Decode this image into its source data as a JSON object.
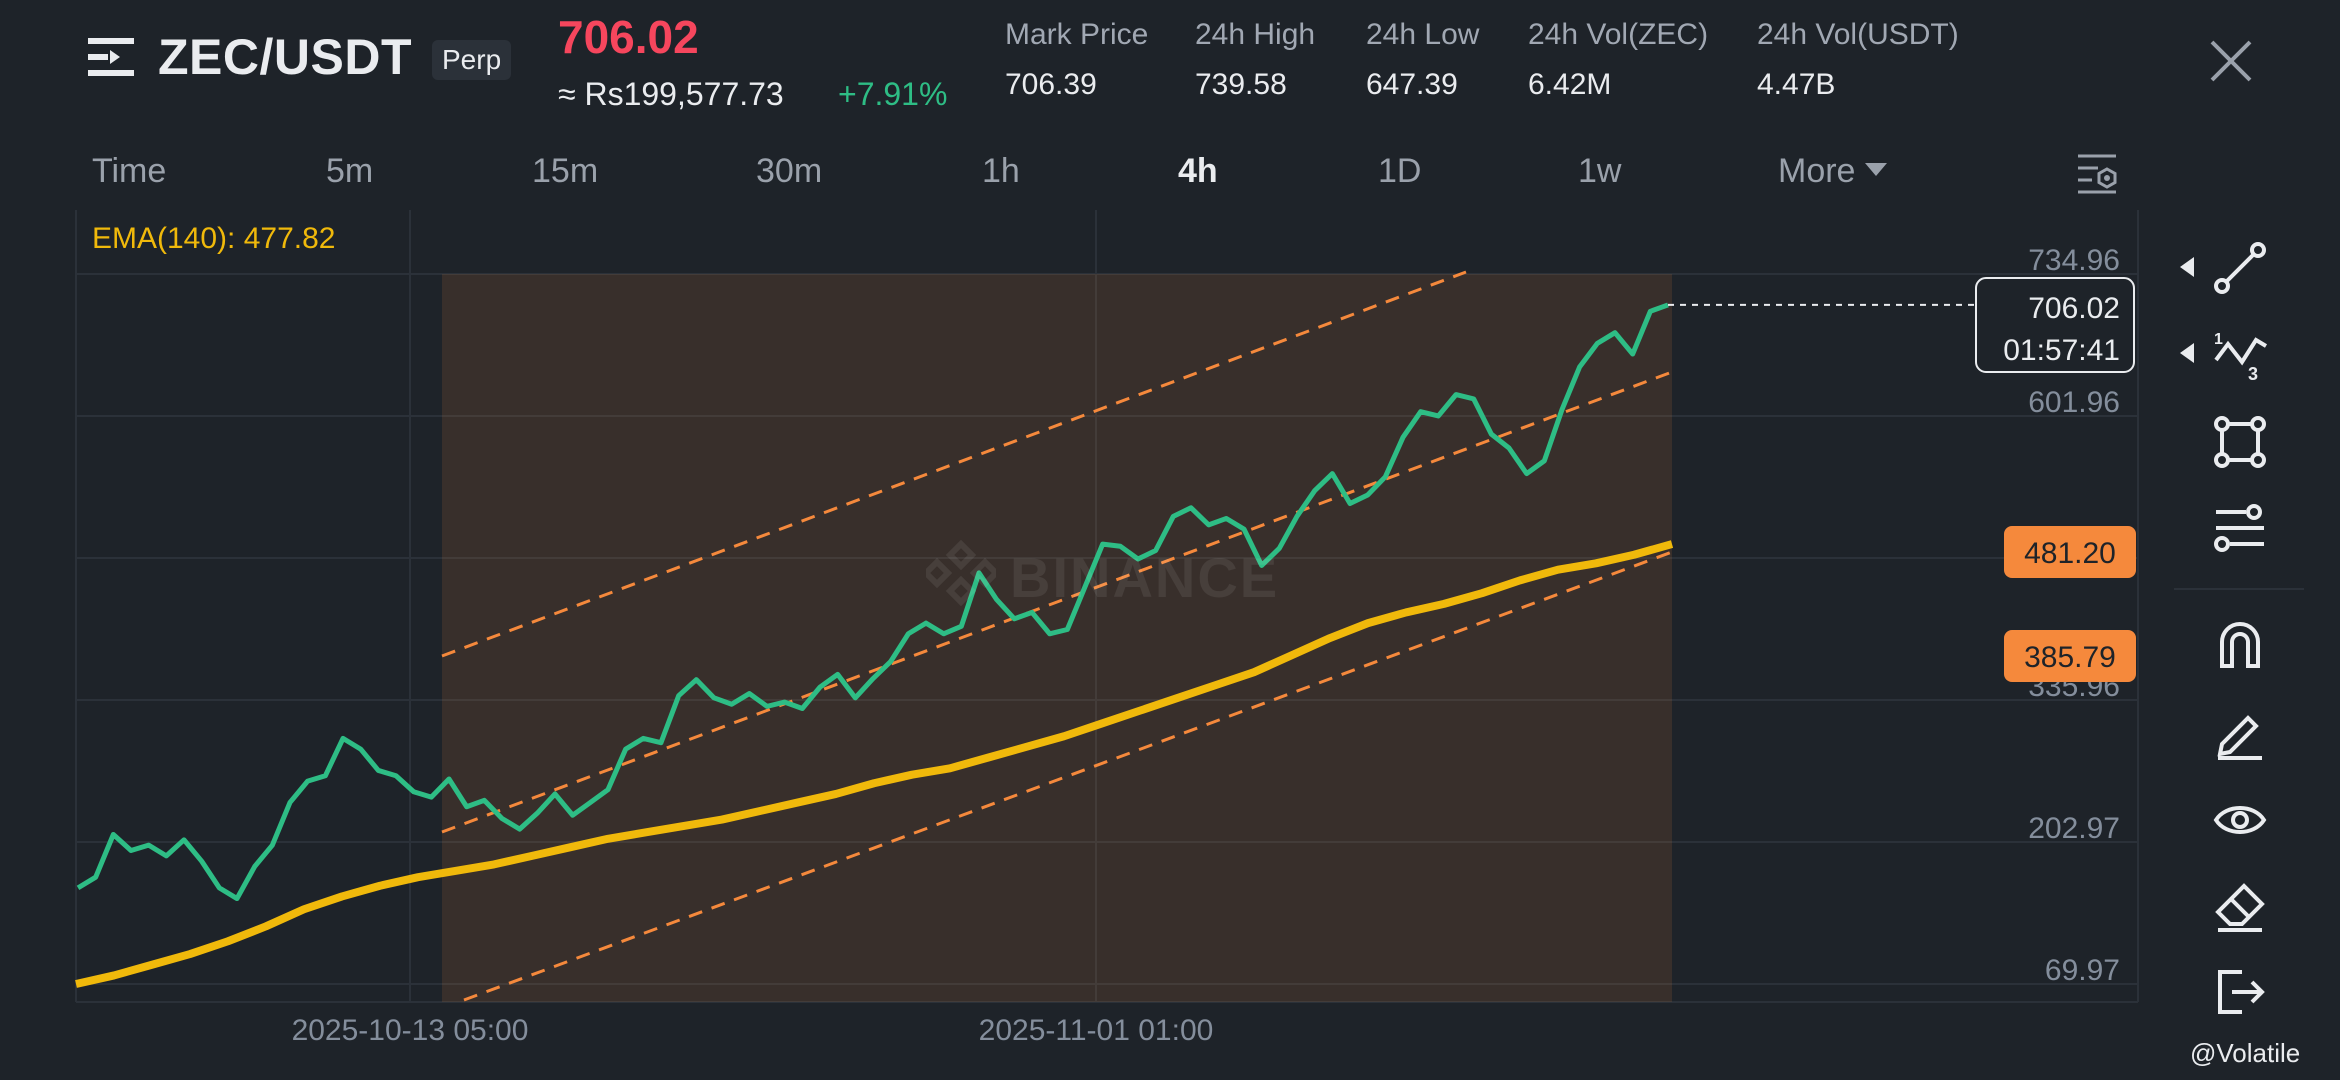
{
  "header": {
    "pair": "ZEC/USDT",
    "contract_type": "Perp",
    "last_price": "706.02",
    "fiat_price": "≈ Rs199,577.73",
    "change_pct": "+7.91%",
    "stats": [
      {
        "label": "Mark Price",
        "value": "706.39"
      },
      {
        "label": "24h High",
        "value": "739.58"
      },
      {
        "label": "24h Low",
        "value": "647.39"
      },
      {
        "label": "24h Vol(ZEC)",
        "value": "6.42M"
      },
      {
        "label": "24h Vol(USDT)",
        "value": "4.47B"
      }
    ]
  },
  "timeframes": {
    "items": [
      "Time",
      "5m",
      "15m",
      "30m",
      "1h",
      "4h",
      "1D",
      "1w"
    ],
    "active": "4h",
    "more_label": "More"
  },
  "indicator": {
    "ema_label": "EMA(140): 477.82"
  },
  "watermark": "BINANCE",
  "credit": "@Volatile",
  "colors": {
    "price_line": "#2ebd85",
    "ema_line": "#f0b90b",
    "channel": "#f5893c",
    "up": "#2ebd85",
    "down": "#f6465d",
    "background": "#1e2329"
  },
  "chart_data": {
    "type": "line",
    "y_axis_ticks": [
      "734.96",
      "601.96",
      "335.96",
      "202.97",
      "69.97"
    ],
    "x_axis_ticks": [
      "2025-10-13 05:00",
      "2025-11-01 01:00"
    ],
    "ylim": [
      69.97,
      734.96
    ],
    "last_price_label": {
      "price": "706.02",
      "countdown": "01:57:41"
    },
    "channel_labels": [
      "481.20",
      "385.79"
    ],
    "series": [
      {
        "name": "ZEC/USDT",
        "values": [
          160,
          170,
          210,
          195,
          200,
          190,
          205,
          185,
          160,
          150,
          180,
          200,
          240,
          260,
          265,
          300,
          290,
          270,
          265,
          250,
          245,
          262,
          236,
          242,
          225,
          215,
          230,
          248,
          228,
          240,
          252,
          290,
          300,
          296,
          340,
          355,
          338,
          332,
          342,
          330,
          334,
          328,
          348,
          360,
          338,
          356,
          372,
          398,
          408,
          398,
          405,
          455,
          430,
          412,
          418,
          398,
          402,
          442,
          482,
          480,
          468,
          476,
          508,
          516,
          500,
          506,
          496,
          462,
          478,
          508,
          532,
          548,
          520,
          528,
          545,
          582,
          606,
          602,
          622,
          618,
          585,
          572,
          548,
          560,
          608,
          648,
          670,
          680,
          660,
          700,
          706
        ]
      },
      {
        "name": "EMA(140)",
        "values": [
          70,
          78,
          88,
          98,
          110,
          124,
          140,
          152,
          162,
          170,
          176,
          182,
          190,
          198,
          206,
          212,
          218,
          224,
          232,
          240,
          248,
          258,
          266,
          272,
          282,
          292,
          302,
          314,
          326,
          338,
          350,
          362,
          378,
          394,
          408,
          418,
          426,
          436,
          448,
          458,
          464,
          472,
          482
        ]
      }
    ]
  }
}
